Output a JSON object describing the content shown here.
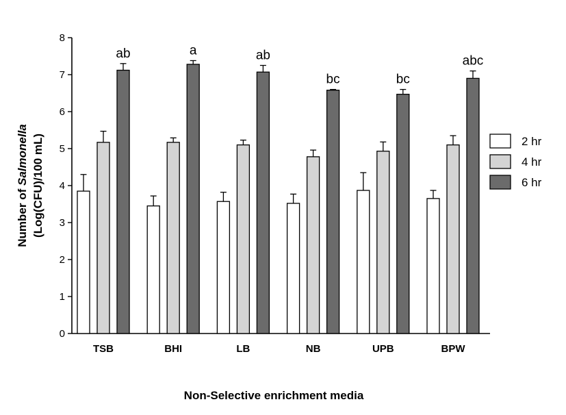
{
  "chart_data": {
    "type": "bar",
    "categories": [
      "TSB",
      "BHI",
      "LB",
      "NB",
      "UPB",
      "BPW"
    ],
    "series": [
      {
        "name": "2 hr",
        "color": "#ffffff",
        "values": [
          3.85,
          3.45,
          3.57,
          3.52,
          3.87,
          3.65
        ],
        "errors": [
          0.45,
          0.27,
          0.25,
          0.25,
          0.48,
          0.22
        ]
      },
      {
        "name": "4 hr",
        "color": "#d4d4d4",
        "values": [
          5.17,
          5.17,
          5.1,
          4.78,
          4.93,
          5.1
        ],
        "errors": [
          0.3,
          0.12,
          0.13,
          0.18,
          0.25,
          0.25
        ]
      },
      {
        "name": "6 hr",
        "color": "#6b6b6b",
        "values": [
          7.12,
          7.28,
          7.07,
          6.58,
          6.47,
          6.9
        ],
        "errors": [
          0.18,
          0.1,
          0.18,
          0.02,
          0.13,
          0.2
        ]
      }
    ],
    "annotations": [
      "ab",
      "a",
      "ab",
      "bc",
      "bc",
      "abc"
    ],
    "ylim": [
      0,
      8
    ],
    "yticks": [
      "0",
      "1",
      "2",
      "3",
      "4",
      "5",
      "6",
      "7",
      "8"
    ],
    "ylabel_line1_prefix": "Number of ",
    "ylabel_line1_italic": "Salmonella",
    "ylabel_line2": "(Log(CFU)/100 mL)",
    "xlabel": "Non-Selective enrichment media",
    "grid": false,
    "legend_position": "right"
  }
}
